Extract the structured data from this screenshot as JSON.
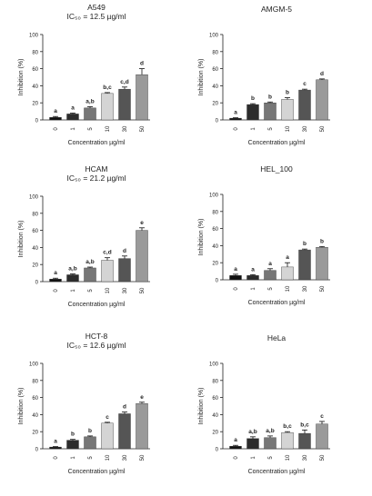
{
  "chart_data": [
    {
      "type": "bar",
      "title": "A549",
      "ic50": "IC₅₀ = 12.5 µg/ml",
      "xlabel": "Concentration µg/ml",
      "ylabel": "Inhibition (%)",
      "ylim": [
        0,
        100
      ],
      "yticks": [
        "0",
        "20",
        "40",
        "60",
        "80",
        "100"
      ],
      "categories": [
        "0",
        "1",
        "5",
        "10",
        "30",
        "50"
      ],
      "values": [
        3,
        7,
        14,
        31,
        36,
        53
      ],
      "errors": [
        1,
        1,
        1.5,
        1,
        2.5,
        7
      ],
      "letters": [
        "a",
        "a",
        "a,b",
        "b,c",
        "c,d",
        "d"
      ],
      "bar_colors": [
        "#111111",
        "#2c2c2c",
        "#777777",
        "#d4d4d4",
        "#555555",
        "#9a9a9a"
      ]
    },
    {
      "type": "bar",
      "title": "AMGM-5",
      "ic50": "",
      "xlabel": "Concentration µg/ml",
      "ylabel": "Inhibition (%)",
      "ylim": [
        0,
        100
      ],
      "yticks": [
        "0",
        "20",
        "40",
        "60",
        "80",
        "100"
      ],
      "categories": [
        "0",
        "1",
        "5",
        "10",
        "30",
        "50"
      ],
      "values": [
        2,
        18,
        20,
        24,
        35,
        47
      ],
      "errors": [
        0.5,
        1,
        1,
        2,
        1,
        1
      ],
      "letters": [
        "a",
        "b",
        "b",
        "b",
        "c",
        "d"
      ],
      "bar_colors": [
        "#111111",
        "#2c2c2c",
        "#777777",
        "#d4d4d4",
        "#555555",
        "#9a9a9a"
      ]
    },
    {
      "type": "bar",
      "title": "HCAM",
      "ic50": "IC₅₀ = 21.2 µg/ml",
      "xlabel": "Concentration µg/ml",
      "ylabel": "Inhibition (%)",
      "ylim": [
        0,
        100
      ],
      "yticks": [
        "0",
        "20",
        "40",
        "60",
        "80",
        "100"
      ],
      "categories": [
        "0",
        "1",
        "5",
        "10",
        "30",
        "50"
      ],
      "values": [
        3,
        8,
        16,
        25,
        27,
        60
      ],
      "errors": [
        1,
        1,
        1,
        3,
        3,
        3
      ],
      "letters": [
        "a",
        "a,b",
        "a,b",
        "c,d",
        "d",
        "e"
      ],
      "bar_colors": [
        "#111111",
        "#2c2c2c",
        "#777777",
        "#d4d4d4",
        "#555555",
        "#9a9a9a"
      ]
    },
    {
      "type": "bar",
      "title": "HEL_100",
      "ic50": "",
      "xlabel": "Concentration µg/ml",
      "ylabel": "Inhibition (%)",
      "ylim": [
        0,
        100
      ],
      "yticks": [
        "0",
        "20",
        "40",
        "60",
        "80",
        "100"
      ],
      "categories": [
        "0",
        "1",
        "5",
        "10",
        "30",
        "50"
      ],
      "values": [
        5,
        5,
        11,
        15,
        35,
        38
      ],
      "errors": [
        1.5,
        1,
        2,
        5,
        1,
        1
      ],
      "letters": [
        "a",
        "a",
        "a",
        "a",
        "b",
        "b"
      ],
      "bar_colors": [
        "#111111",
        "#2c2c2c",
        "#777777",
        "#d4d4d4",
        "#555555",
        "#9a9a9a"
      ]
    },
    {
      "type": "bar",
      "title": "HCT-8",
      "ic50": "IC₅₀ = 12.6 µg/ml",
      "xlabel": "Concentration µg/ml",
      "ylabel": "Inhibition (%)",
      "ylim": [
        0,
        100
      ],
      "yticks": [
        "0",
        "20",
        "40",
        "60",
        "80",
        "100"
      ],
      "categories": [
        "0",
        "1",
        "5",
        "10",
        "30",
        "50"
      ],
      "values": [
        2,
        10,
        14,
        30,
        41,
        53
      ],
      "errors": [
        0.5,
        1,
        1,
        1,
        2,
        1.5
      ],
      "letters": [
        "a",
        "b",
        "b",
        "c",
        "d",
        "e"
      ],
      "bar_colors": [
        "#111111",
        "#2c2c2c",
        "#777777",
        "#d4d4d4",
        "#555555",
        "#9a9a9a"
      ]
    },
    {
      "type": "bar",
      "title": "HeLa",
      "ic50": "",
      "xlabel": "Concentration µg/ml",
      "ylabel": "Inhibition (%)",
      "ylim": [
        0,
        100
      ],
      "yticks": [
        "0",
        "20",
        "40",
        "60",
        "80",
        "100"
      ],
      "categories": [
        "0",
        "1",
        "5",
        "10",
        "30",
        "50"
      ],
      "values": [
        3,
        12,
        13,
        19,
        18,
        29
      ],
      "errors": [
        1,
        2,
        2,
        1,
        4,
        3
      ],
      "letters": [
        "a",
        "a,b",
        "a,b",
        "b,c",
        "b,c",
        "c"
      ],
      "bar_colors": [
        "#111111",
        "#2c2c2c",
        "#777777",
        "#d4d4d4",
        "#555555",
        "#9a9a9a"
      ]
    }
  ]
}
